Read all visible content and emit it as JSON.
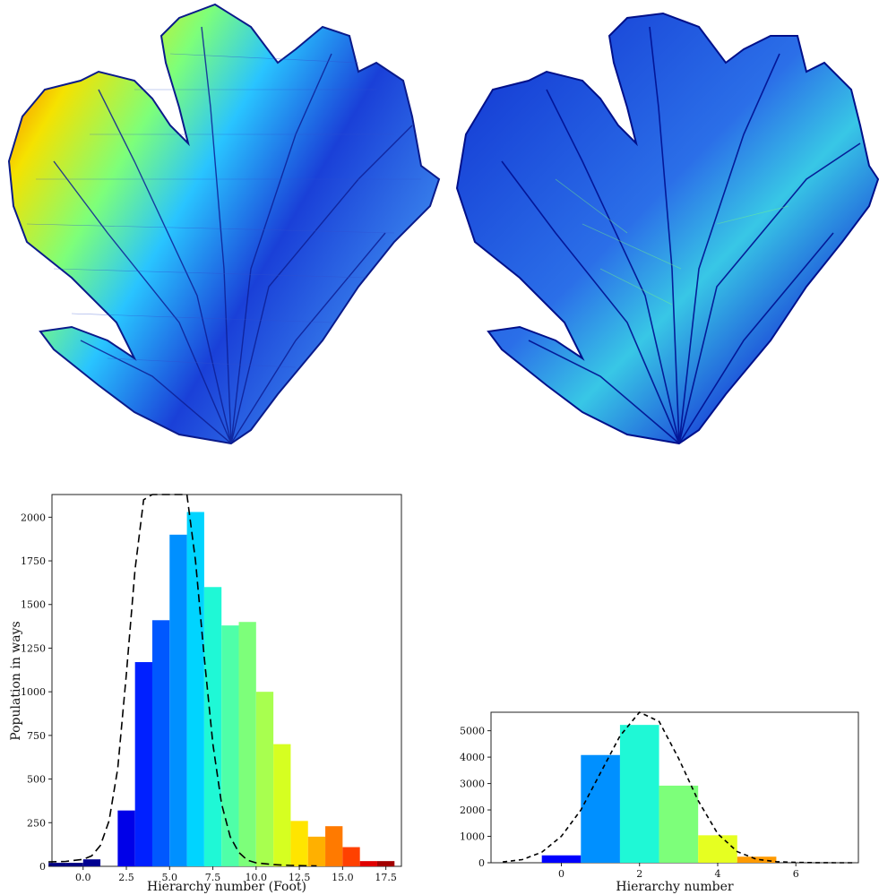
{
  "figure": {
    "left_fan": {
      "description_icon": "sea-fan-branch-network-colored-by-foot-hierarchy"
    },
    "right_fan": {
      "description_icon": "sea-fan-branch-network-colored-by-hierarchy"
    }
  },
  "chart_data": [
    {
      "type": "bar",
      "xlabel": "Hierarchy number (Foot)",
      "ylabel": "Population in ways",
      "xlim": [
        -1.8,
        18.4
      ],
      "ylim": [
        0,
        2130
      ],
      "xticks": [
        "0.0",
        "2.5",
        "5.0",
        "7.5",
        "10.0",
        "12.5",
        "15.0",
        "17.5"
      ],
      "xtick_values": [
        0,
        2.5,
        5,
        7.5,
        10,
        12.5,
        15,
        17.5
      ],
      "yticks": [
        "0",
        "250",
        "500",
        "750",
        "1000",
        "1250",
        "1500",
        "1750",
        "2000"
      ],
      "ytick_values": [
        0,
        250,
        500,
        750,
        1000,
        1250,
        1500,
        1750,
        2000
      ],
      "bin_width": 1,
      "bins": [
        -2,
        -1,
        0,
        1,
        2,
        3,
        4,
        5,
        6,
        7,
        8,
        9,
        10,
        11,
        12,
        13,
        14,
        15,
        16,
        17
      ],
      "values": [
        20,
        20,
        40,
        0,
        320,
        1170,
        1410,
        1900,
        2030,
        1600,
        1380,
        1400,
        1000,
        700,
        260,
        170,
        230,
        110,
        30,
        30
      ],
      "colors": [
        "#00007f",
        "#00007f",
        "#000090",
        "#0000b5",
        "#0000e8",
        "#0020ff",
        "#0058ff",
        "#0090ff",
        "#00d4ff",
        "#1ff8d6",
        "#4fffa8",
        "#7dff7a",
        "#a8ff4f",
        "#d6ff21",
        "#ffe500",
        "#ffb000",
        "#ff7a00",
        "#ff4100",
        "#e00000",
        "#a20000"
      ],
      "fit_curve": {
        "style": "dashed",
        "x": [
          -2,
          -1,
          0,
          0.5,
          1,
          1.5,
          2,
          2.5,
          3,
          3.5,
          4,
          4.5,
          5,
          5.5,
          6,
          6.5,
          7,
          7.5,
          8,
          8.5,
          9,
          9.5,
          10,
          11,
          12,
          13.5
        ],
        "y": [
          25,
          28,
          40,
          60,
          120,
          260,
          560,
          1100,
          1700,
          2100,
          2200,
          2200,
          2200,
          2200,
          2200,
          1750,
          1200,
          700,
          360,
          170,
          80,
          35,
          20,
          10,
          5,
          2
        ]
      }
    },
    {
      "type": "bar",
      "xlabel": "Hierarchy number",
      "ylabel": "",
      "xlim": [
        -1.8,
        7.6
      ],
      "ylim": [
        0,
        5700
      ],
      "xticks": [
        "0",
        "2",
        "4",
        "6"
      ],
      "xtick_values": [
        0,
        2,
        4,
        6
      ],
      "yticks": [
        "0",
        "1000",
        "2000",
        "3000",
        "4000",
        "5000"
      ],
      "ytick_values": [
        0,
        1000,
        2000,
        3000,
        4000,
        5000
      ],
      "bin_width": 1,
      "bins": [
        -0.5,
        0.5,
        1.5,
        2.5,
        3.5,
        4.5
      ],
      "values": [
        280,
        4080,
        5220,
        2920,
        1040,
        230
      ],
      "colors": [
        "#0000ff",
        "#0090ff",
        "#1ff8d6",
        "#7dff7a",
        "#e6ff21",
        "#ff9a00"
      ],
      "fit_curve": {
        "style": "dashed",
        "x": [
          -1.5,
          -1,
          -0.5,
          0,
          0.5,
          1,
          1.5,
          2,
          2.5,
          3,
          3.5,
          4,
          4.5,
          5,
          5.5,
          6,
          6.5,
          7,
          7.5
        ],
        "y": [
          30,
          120,
          400,
          1000,
          2000,
          3400,
          4800,
          5700,
          5350,
          3950,
          2350,
          1100,
          420,
          130,
          40,
          12,
          4,
          1,
          0
        ]
      }
    }
  ]
}
